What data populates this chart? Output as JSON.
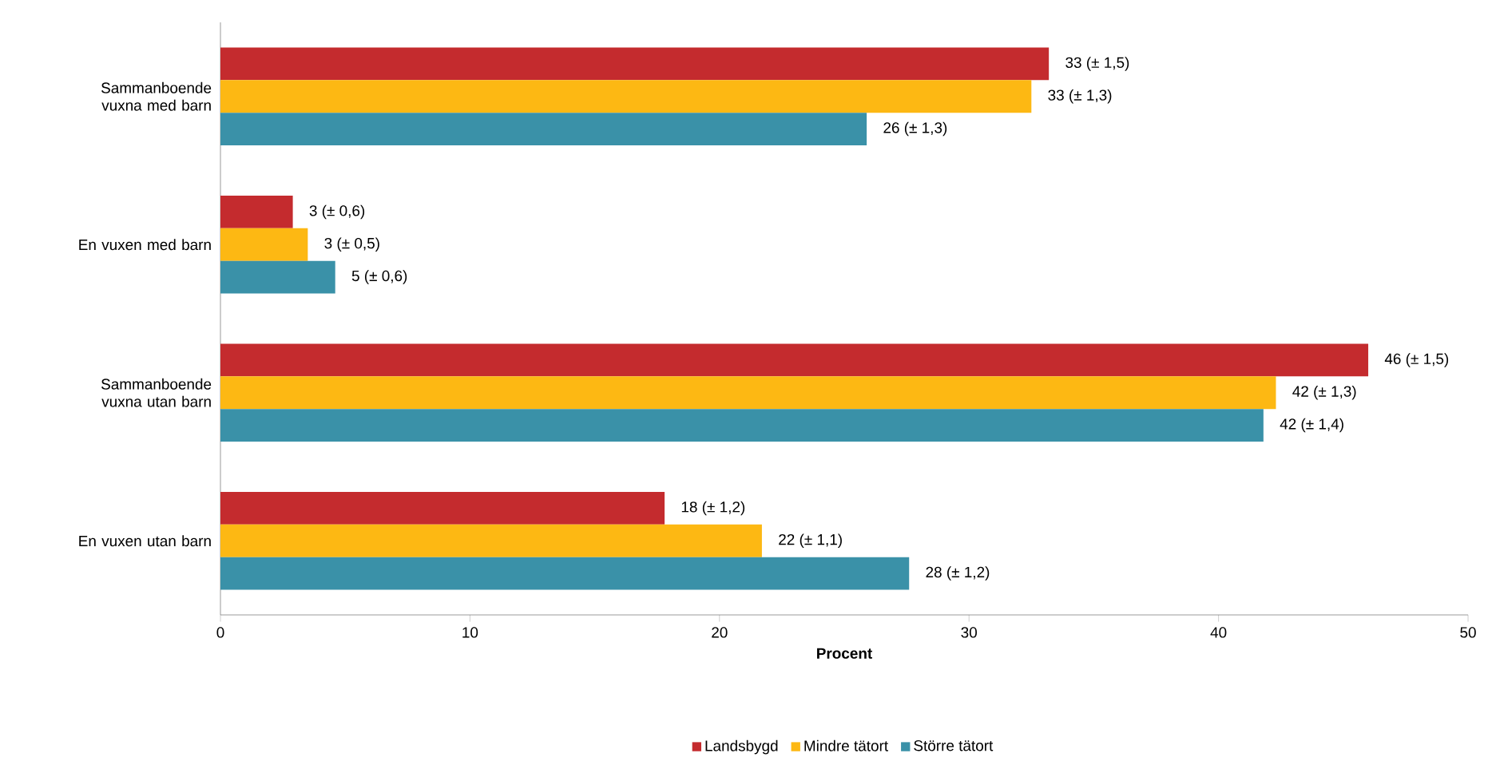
{
  "chart_data": {
    "type": "bar",
    "orientation": "horizontal",
    "xlabel": "Procent",
    "categories": [
      "Sammanboende vuxna med barn",
      "En vuxen med barn",
      "Sammanboende vuxna utan barn",
      "En vuxen utan barn"
    ],
    "series": [
      {
        "name": "Landsbygd",
        "color": "#c42b2e",
        "values": [
          33.2,
          2.9,
          46.0,
          17.8
        ],
        "value_labels": [
          "33 (± 1,5)",
          "3 (± 0,6)",
          "46 (± 1,5)",
          "18 (± 1,2)"
        ]
      },
      {
        "name": "Mindre tätort",
        "color": "#fdb813",
        "values": [
          32.5,
          3.5,
          42.3,
          21.7
        ],
        "value_labels": [
          "33 (± 1,3)",
          "3 (± 0,5)",
          "42 (± 1,3)",
          "22 (± 1,1)"
        ]
      },
      {
        "name": "Större tätort",
        "color": "#3a91a8",
        "values": [
          25.9,
          4.6,
          41.8,
          27.6
        ],
        "value_labels": [
          "26 (± 1,3)",
          "5 (± 0,6)",
          "42 (± 1,4)",
          "28 (± 1,2)"
        ]
      }
    ],
    "xlim": [
      0,
      50
    ],
    "xticks": [
      0,
      10,
      20,
      30,
      40,
      50
    ],
    "grid": false,
    "legend": "bottom"
  }
}
